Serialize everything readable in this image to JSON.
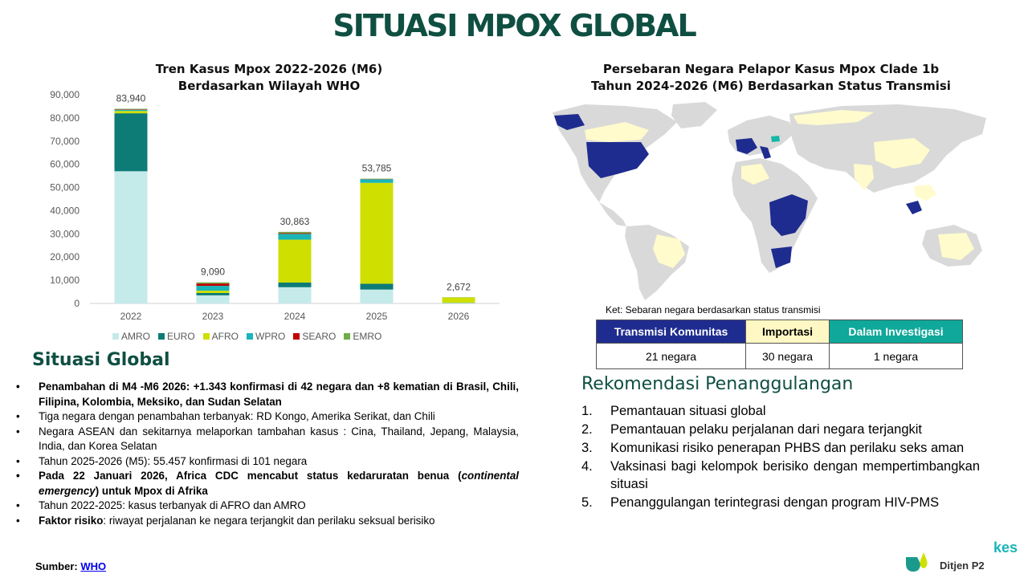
{
  "page_title": "SITUASI MPOX GLOBAL",
  "chart_title_line1": "Tren Kasus Mpox 2022-2026 (M6)",
  "chart_title_line2": "Berdasarkan Wilayah WHO",
  "chart_data": {
    "type": "bar",
    "stacked": true,
    "title": "Tren Kasus Mpox 2022-2026 (M6) Berdasarkan Wilayah WHO",
    "categories": [
      "2022",
      "2023",
      "2024",
      "2025",
      "2026"
    ],
    "totals": [
      83940,
      9090,
      30863,
      53785,
      2672
    ],
    "total_labels": [
      "83,940",
      "9,090",
      "30,863",
      "53,785",
      "2,672"
    ],
    "ylim": [
      0,
      90000
    ],
    "yticks": [
      0,
      10000,
      20000,
      30000,
      40000,
      50000,
      60000,
      70000,
      80000,
      90000
    ],
    "ytick_labels": [
      "0",
      "10,000",
      "20,000",
      "30,000",
      "40,000",
      "50,000",
      "60,000",
      "70,000",
      "80,000",
      "90,000"
    ],
    "legend_position": "bottom",
    "grid": false,
    "series": [
      {
        "name": "AMRO",
        "color": "#c5eaea",
        "values": [
          57000,
          3500,
          7000,
          6000,
          200
        ]
      },
      {
        "name": "EURO",
        "color": "#0d7b76",
        "values": [
          25000,
          1000,
          2000,
          2500,
          100
        ]
      },
      {
        "name": "AFRO",
        "color": "#cfdf00",
        "values": [
          1000,
          1000,
          18500,
          43500,
          2300
        ]
      },
      {
        "name": "WPRO",
        "color": "#1ab5b7",
        "values": [
          500,
          2100,
          2500,
          1500,
          50
        ]
      },
      {
        "name": "SEARO",
        "color": "#c00000",
        "values": [
          200,
          1000,
          300,
          100,
          10
        ]
      },
      {
        "name": "EMRO",
        "color": "#70ad47",
        "values": [
          240,
          490,
          563,
          185,
          12
        ]
      }
    ]
  },
  "situasi": {
    "heading": "Situasi Global",
    "items": [
      {
        "text": "Penambahan di M4 -M6 2026: +1.343 konfirmasi di 42 negara dan +8 kematian di Brasil, Chili, Filipina, Kolombia, Meksiko, dan Sudan Selatan",
        "bold": true
      },
      {
        "text": "Tiga negara dengan penambahan terbanyak: RD Kongo, Amerika Serikat, dan Chili",
        "bold": false
      },
      {
        "text": "Negara ASEAN dan sekitarnya melaporkan tambahan kasus : Cina, Thailand, Jepang, Malaysia, India, dan Korea Selatan",
        "bold": false
      },
      {
        "text": "Tahun 2025-2026 (M5): 55.457 konfirmasi di 101 negara",
        "bold": false
      },
      {
        "text_pre": "Pada 22 Januari 2026, Africa CDC mencabut status kedaruratan benua (",
        "text_em": "continental emergency",
        "text_post": ") untuk Mpox di Afrika",
        "bold": true
      },
      {
        "text": "Tahun 2022-2025: kasus terbanyak di AFRO dan AMRO",
        "bold": false
      },
      {
        "text_bold": "Faktor risiko",
        "text_rest": ": riwayat perjalanan ke negara terjangkit dan perilaku seksual berisiko",
        "bold": false
      }
    ]
  },
  "source": {
    "label": "Sumber:",
    "link_text": "WHO"
  },
  "map": {
    "title_line1": "Persebaran Negara Pelapor Kasus Mpox Clade 1b",
    "title_line2": "Tahun 2024-2026 (M6) Berdasarkan Status Transmisi",
    "note": "Ket: Sebaran negara berdasarkan status transmisi",
    "colors": {
      "community": "#1f2c8f",
      "import": "#fffbcc",
      "investigation": "#14b8a6",
      "none": "#d9d9d9"
    }
  },
  "table": {
    "headers": [
      "Transmisi Komunitas",
      "Importasi",
      "Dalam Investigasi"
    ],
    "header_colors": [
      "#1f2c8f",
      "#fff8c4",
      "#0fa89a"
    ],
    "values": [
      "21 negara",
      "30 negara",
      "1 negara"
    ]
  },
  "rekomendasi": {
    "heading": "Rekomendasi Penanggulangan",
    "items": [
      {
        "num": "1.",
        "text": "Pemantauan situasi global"
      },
      {
        "num": "2.",
        "text": "Pemantauan pelaku perjalanan dari negara terjangkit"
      },
      {
        "num": "3.",
        "text": "Komunikasi risiko penerapan PHBS dan perilaku seks aman"
      },
      {
        "num": "4.",
        "text": "Vaksinasi bagi kelompok berisiko dengan mempertimbangkan situasi"
      },
      {
        "num": "5.",
        "text": "Penanggulangan terintegrasi dengan program HIV-PMS"
      }
    ]
  },
  "logo": {
    "kes": "kes",
    "ditjen": "Ditjen P2"
  }
}
